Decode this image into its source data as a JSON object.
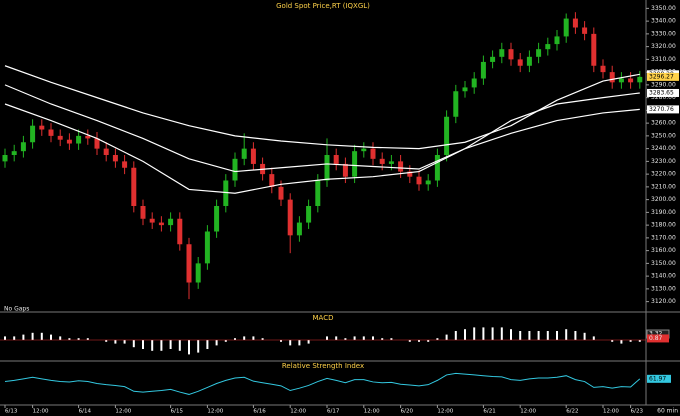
{
  "chart_data": {
    "type": "candlestick",
    "title": "Gold Spot Price,RT (IQXGL)",
    "gaps_label": "No Gaps",
    "timeframe": "60 min",
    "up_color": "#22b422",
    "down_color": "#e03030",
    "open": [
      3230,
      3235,
      3238,
      3245,
      3258,
      3255,
      3250,
      3247,
      3244,
      3250,
      3248,
      3240,
      3235,
      3230,
      3225,
      3195,
      3185,
      3182,
      3180,
      3185,
      3165,
      3135,
      3150,
      3175,
      3195,
      3215,
      3232,
      3240,
      3228,
      3220,
      3210,
      3200,
      3172,
      3182,
      3195,
      3215,
      3235,
      3228,
      3218,
      3238,
      3240,
      3232,
      3228,
      3230,
      3222,
      3218,
      3212,
      3215,
      3235,
      3265,
      3285,
      3288,
      3295,
      3308,
      3312,
      3318,
      3310,
      3305,
      3312,
      3318,
      3322,
      3328,
      3342,
      3335,
      3330,
      3305,
      3300,
      3292,
      3295,
      3292
    ],
    "high": [
      3240,
      3243,
      3250,
      3263,
      3263,
      3260,
      3255,
      3252,
      3255,
      3255,
      3253,
      3245,
      3240,
      3235,
      3230,
      3200,
      3190,
      3187,
      3190,
      3190,
      3170,
      3155,
      3180,
      3200,
      3220,
      3237,
      3252,
      3245,
      3233,
      3225,
      3215,
      3205,
      3187,
      3200,
      3220,
      3248,
      3240,
      3233,
      3243,
      3245,
      3245,
      3237,
      3235,
      3235,
      3227,
      3223,
      3220,
      3240,
      3270,
      3290,
      3293,
      3300,
      3313,
      3317,
      3323,
      3323,
      3315,
      3317,
      3323,
      3327,
      3333,
      3346,
      3347,
      3340,
      3335,
      3310,
      3305,
      3300,
      3300,
      3301
    ],
    "low": [
      3225,
      3230,
      3233,
      3240,
      3250,
      3245,
      3242,
      3239,
      3239,
      3243,
      3235,
      3230,
      3225,
      3220,
      3190,
      3180,
      3177,
      3175,
      3175,
      3160,
      3122,
      3130,
      3145,
      3170,
      3190,
      3210,
      3227,
      3223,
      3215,
      3205,
      3195,
      3158,
      3167,
      3177,
      3190,
      3210,
      3223,
      3213,
      3213,
      3233,
      3227,
      3223,
      3223,
      3217,
      3213,
      3207,
      3207,
      3210,
      3230,
      3260,
      3280,
      3283,
      3290,
      3303,
      3307,
      3305,
      3300,
      3300,
      3307,
      3313,
      3317,
      3323,
      3330,
      3325,
      3300,
      3295,
      3287,
      3287,
      3287,
      3287
    ],
    "close": [
      3235,
      3238,
      3245,
      3258,
      3255,
      3250,
      3247,
      3244,
      3250,
      3248,
      3240,
      3235,
      3230,
      3225,
      3195,
      3185,
      3182,
      3180,
      3185,
      3165,
      3135,
      3150,
      3175,
      3195,
      3215,
      3232,
      3240,
      3228,
      3220,
      3210,
      3200,
      3172,
      3182,
      3195,
      3215,
      3235,
      3228,
      3218,
      3238,
      3240,
      3232,
      3228,
      3230,
      3222,
      3218,
      3212,
      3215,
      3235,
      3265,
      3285,
      3288,
      3295,
      3308,
      3312,
      3318,
      3310,
      3305,
      3312,
      3318,
      3322,
      3328,
      3342,
      3335,
      3330,
      3305,
      3300,
      3292,
      3295,
      3292,
      3296.27
    ],
    "ylim": [
      3115,
      3355
    ],
    "yticks": [
      {
        "value": 3120,
        "label": "3120.00"
      },
      {
        "value": 3130,
        "label": "3130.00"
      },
      {
        "value": 3140,
        "label": "3140.00"
      },
      {
        "value": 3150,
        "label": "3150.00"
      },
      {
        "value": 3160,
        "label": "3160.00"
      },
      {
        "value": 3170,
        "label": "3170.00"
      },
      {
        "value": 3180,
        "label": "3180.00"
      },
      {
        "value": 3190,
        "label": "3190.00"
      },
      {
        "value": 3200,
        "label": "3200.00"
      },
      {
        "value": 3210,
        "label": "3210.00"
      },
      {
        "value": 3220,
        "label": "3220.00"
      },
      {
        "value": 3230,
        "label": "3230.00"
      },
      {
        "value": 3240,
        "label": "3240.00"
      },
      {
        "value": 3250,
        "label": "3250.00"
      },
      {
        "value": 3260,
        "label": "3260.00"
      },
      {
        "value": 3270,
        "label": "3270.00"
      },
      {
        "value": 3280,
        "label": "3280.00"
      },
      {
        "value": 3290,
        "label": "3290.00"
      },
      {
        "value": 3300,
        "label": "3300.00"
      },
      {
        "value": 3310,
        "label": "3310.00"
      },
      {
        "value": 3320,
        "label": "3320.00"
      },
      {
        "value": 3330,
        "label": "3330.00"
      },
      {
        "value": 3340,
        "label": "3340.00"
      },
      {
        "value": 3350,
        "label": "3350.00"
      }
    ],
    "xticks": [
      {
        "value": 0,
        "label": "6/13"
      },
      {
        "value": 3,
        "label": "12:00"
      },
      {
        "value": 8,
        "label": "6/14"
      },
      {
        "value": 12,
        "label": "12:00"
      },
      {
        "value": 18,
        "label": "6/15"
      },
      {
        "value": 22,
        "label": "12:00"
      },
      {
        "value": 27,
        "label": "6/16"
      },
      {
        "value": 31,
        "label": "12:00"
      },
      {
        "value": 35,
        "label": "6/17"
      },
      {
        "value": 39,
        "label": "12:00"
      },
      {
        "value": 43,
        "label": "6/20"
      },
      {
        "value": 47,
        "label": "12:00"
      },
      {
        "value": 52,
        "label": "6/21"
      },
      {
        "value": 56,
        "label": "12:00"
      },
      {
        "value": 61,
        "label": "6/22"
      },
      {
        "value": 65,
        "label": "12:00"
      },
      {
        "value": 68,
        "label": "6/23"
      }
    ],
    "ma_index": [
      0,
      5,
      10,
      15,
      20,
      25,
      30,
      35,
      40,
      45,
      50,
      55,
      60,
      65,
      69
    ],
    "ma": [
      {
        "color": "#ffffff",
        "values": [
          3305,
          3292,
          3280,
          3268,
          3258,
          3250,
          3246,
          3243,
          3241,
          3240,
          3245,
          3258,
          3278,
          3293,
          3298.28
        ]
      },
      {
        "color": "#ffffff",
        "values": [
          3290,
          3275,
          3262,
          3248,
          3232,
          3222,
          3225,
          3228,
          3226,
          3224,
          3240,
          3262,
          3275,
          3280,
          3283.65
        ]
      },
      {
        "color": "#ffffff",
        "values": [
          3275,
          3262,
          3248,
          3230,
          3208,
          3205,
          3212,
          3216,
          3218,
          3222,
          3240,
          3252,
          3262,
          3268,
          3270.76
        ]
      }
    ],
    "macd": {
      "title": "MACD",
      "color": "#ffffff",
      "signal_color": "#e03030",
      "ylim": [
        -10,
        10
      ],
      "macd": 3.32,
      "signal": 0.87,
      "values": [
        2,
        2,
        3,
        4,
        4,
        3,
        2,
        1,
        1,
        1,
        0,
        -1,
        -2,
        -2,
        -4,
        -5,
        -6,
        -6,
        -5,
        -6,
        -8,
        -7,
        -5,
        -3,
        -1,
        1,
        2,
        2,
        1,
        0,
        -1,
        -3,
        -3,
        -2,
        0,
        2,
        2,
        1,
        2,
        2,
        2,
        1,
        1,
        0,
        -1,
        -1,
        -1,
        1,
        3,
        5,
        6,
        7,
        7,
        7,
        7,
        6,
        5,
        5,
        5,
        5,
        5,
        6,
        5,
        4,
        2,
        0,
        -1,
        -2,
        -1,
        -1
      ]
    },
    "rsi": {
      "title": "Relative Strength Index",
      "color": "#33c8e0",
      "ylim": [
        0,
        100
      ],
      "values": [
        55,
        58,
        62,
        66,
        62,
        58,
        55,
        54,
        57,
        55,
        50,
        47,
        45,
        42,
        30,
        28,
        30,
        32,
        35,
        28,
        22,
        30,
        40,
        50,
        58,
        64,
        66,
        56,
        52,
        48,
        44,
        32,
        38,
        45,
        55,
        63,
        58,
        52,
        60,
        60,
        54,
        52,
        53,
        48,
        46,
        44,
        47,
        58,
        72,
        76,
        74,
        72,
        70,
        68,
        67,
        60,
        58,
        62,
        64,
        64,
        66,
        70,
        60,
        55,
        40,
        42,
        38,
        42,
        41,
        61.97
      ]
    }
  }
}
